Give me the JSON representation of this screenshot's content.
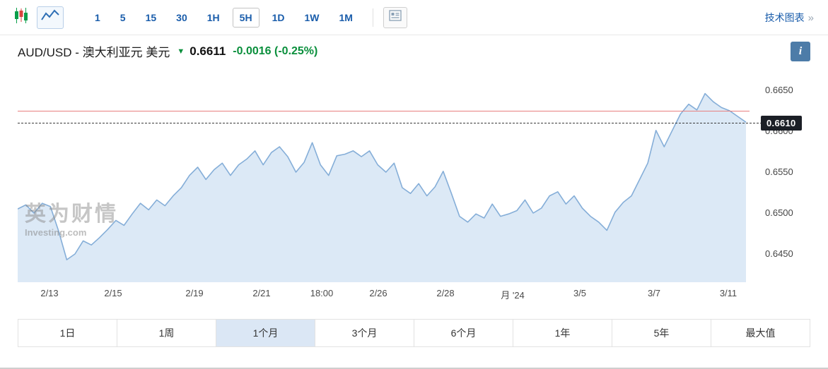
{
  "toolbar": {
    "timeframes": [
      "1",
      "5",
      "15",
      "30",
      "1H",
      "5H",
      "1D",
      "1W",
      "1M"
    ],
    "selected_timeframe": "5H",
    "technical_charts_label": "技术图表",
    "technical_charts_arrow": "»"
  },
  "header": {
    "title": "AUD/USD - 澳大利亚元 美元",
    "price": "0.6611",
    "change": "-0.0016 (-0.25%)",
    "info_label": "i"
  },
  "chart": {
    "watermark_title": "英为财情",
    "watermark_sub": "Investing.com",
    "last_price_label": "0.6610",
    "y_axis": [
      "0.6650",
      "0.6600",
      "0.6550",
      "0.6500",
      "0.6450"
    ],
    "x_axis": [
      "2/13",
      "2/15",
      "2/19",
      "2/21",
      "18:00",
      "2/26",
      "2/28",
      "月 '24",
      "3/5",
      "3/7",
      "3/11"
    ]
  },
  "periods": {
    "items": [
      "1日",
      "1周",
      "1个月",
      "3个月",
      "6个月",
      "1年",
      "5年",
      "最大值"
    ],
    "selected": "1个月"
  },
  "colors": {
    "accent_blue": "#1a5dab",
    "down_green": "#0a8f3c",
    "area_fill": "#dce9f6",
    "line_stroke": "#85aed8",
    "alert_line_red": "#e87f7f",
    "price_tag_bg": "#1b1f26",
    "selected_period_bg": "#dbe7f5"
  },
  "chart_data": {
    "type": "area",
    "title": "AUD/USD - 澳大利亚元 美元",
    "symbol": "AUD/USD",
    "timeframe": "5H",
    "selected_range": "1个月",
    "x_labels": [
      "2/13",
      "2/15",
      "2/19",
      "2/21",
      "18:00",
      "2/26",
      "2/28",
      "月 '24",
      "3/5",
      "3/7",
      "3/11"
    ],
    "y_ticks": [
      0.645,
      0.65,
      0.655,
      0.66,
      0.665
    ],
    "ylim": [
      0.643,
      0.666
    ],
    "last_price": 0.6611,
    "change": -0.0016,
    "change_pct": -0.25,
    "red_line_level": 0.6625,
    "dashed_line_level": 0.661,
    "points": [
      0.6505,
      0.651,
      0.65,
      0.6512,
      0.6508,
      0.6478,
      0.6443,
      0.645,
      0.6466,
      0.6461,
      0.647,
      0.648,
      0.6491,
      0.6485,
      0.6499,
      0.6512,
      0.6504,
      0.6516,
      0.6509,
      0.6521,
      0.6531,
      0.6546,
      0.6556,
      0.6541,
      0.6553,
      0.6561,
      0.6546,
      0.6559,
      0.6566,
      0.6576,
      0.6559,
      0.6574,
      0.6581,
      0.6569,
      0.655,
      0.6562,
      0.6586,
      0.6559,
      0.6546,
      0.657,
      0.6572,
      0.6576,
      0.6569,
      0.6576,
      0.6559,
      0.655,
      0.6561,
      0.6531,
      0.6524,
      0.6536,
      0.6521,
      0.6532,
      0.6551,
      0.6524,
      0.6496,
      0.6489,
      0.6499,
      0.6494,
      0.6511,
      0.6496,
      0.6499,
      0.6503,
      0.6516,
      0.65,
      0.6506,
      0.6521,
      0.6526,
      0.6511,
      0.6521,
      0.6506,
      0.6496,
      0.6489,
      0.6479,
      0.6501,
      0.6513,
      0.6521,
      0.6541,
      0.6561,
      0.6601,
      0.6581,
      0.6601,
      0.6621,
      0.6633,
      0.6626,
      0.6646,
      0.6636,
      0.6629,
      0.6625,
      0.6618,
      0.6611
    ]
  }
}
